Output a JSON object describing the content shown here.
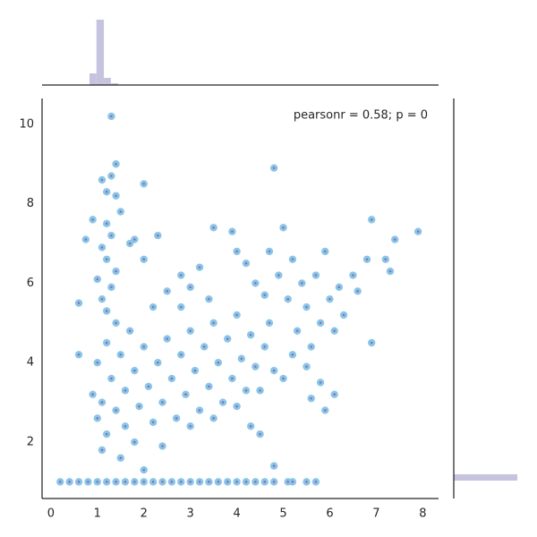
{
  "chart_data": {
    "type": "scatter",
    "annotation": "pearsonr = 0.58; p = 0",
    "color": "#89c6e6",
    "edge_color": "#8a6fc0",
    "hist_color": "#c5c3de",
    "xlim": [
      -0.19,
      8.34
    ],
    "ylim": [
      0.58,
      10.65
    ],
    "xticks": [
      0,
      1,
      2,
      3,
      4,
      5,
      6,
      7,
      8
    ],
    "yticks": [
      2,
      4,
      6,
      8,
      10
    ],
    "x": [
      0.2,
      0.4,
      0.6,
      0.8,
      1.0,
      1.2,
      1.4,
      1.6,
      1.8,
      2.0,
      2.2,
      2.4,
      2.6,
      2.8,
      3.0,
      3.2,
      3.4,
      3.6,
      3.8,
      4.0,
      4.2,
      4.4,
      4.6,
      4.8,
      5.1,
      5.2,
      5.5,
      5.7,
      1.3,
      1.4,
      1.3,
      1.1,
      1.2,
      1.4,
      1.5,
      1.2,
      1.3,
      1.1,
      1.2,
      1.4,
      1.0,
      1.3,
      1.1,
      1.2,
      0.9,
      0.75,
      0.6,
      0.6,
      1.7,
      1.8,
      2.0,
      2.0,
      2.3,
      0.9,
      1.0,
      1.0,
      1.1,
      1.1,
      1.2,
      1.2,
      1.3,
      1.4,
      1.4,
      1.5,
      1.5,
      1.6,
      1.6,
      1.7,
      1.8,
      1.8,
      1.9,
      2.0,
      2.0,
      2.1,
      2.2,
      2.2,
      2.3,
      2.4,
      2.4,
      2.5,
      2.6,
      2.7,
      2.8,
      2.8,
      2.9,
      3.0,
      3.0,
      3.1,
      3.2,
      3.3,
      3.4,
      3.5,
      3.5,
      3.6,
      3.7,
      3.8,
      3.9,
      4.0,
      4.0,
      4.1,
      4.2,
      4.3,
      4.4,
      4.5,
      4.6,
      4.7,
      4.8,
      4.8,
      4.5,
      4.3,
      2.5,
      2.8,
      3.0,
      3.2,
      3.4,
      3.5,
      3.9,
      4.0,
      4.2,
      4.4,
      4.6,
      4.7,
      4.8,
      4.9,
      5.0,
      5.1,
      5.2,
      5.3,
      5.4,
      5.5,
      5.6,
      5.7,
      5.8,
      5.9,
      6.0,
      6.1,
      6.2,
      6.3,
      6.5,
      6.6,
      6.8,
      6.9,
      6.9,
      7.2,
      7.3,
      7.4,
      7.9,
      5.5,
      5.8,
      6.1,
      5.9,
      5.6,
      5.2,
      5.0
    ],
    "y": [
      1,
      1,
      1,
      1,
      1,
      1,
      1,
      1,
      1,
      1,
      1,
      1,
      1,
      1,
      1,
      1,
      1,
      1,
      1,
      1,
      1,
      1,
      1,
      1,
      1,
      1,
      1,
      1,
      10.2,
      9.0,
      8.7,
      8.6,
      8.3,
      8.2,
      7.8,
      7.5,
      7.2,
      6.9,
      6.6,
      6.3,
      6.1,
      5.9,
      5.6,
      5.3,
      7.6,
      7.1,
      5.5,
      4.2,
      7.0,
      7.1,
      8.5,
      6.6,
      7.2,
      3.2,
      2.6,
      4.0,
      1.8,
      3.0,
      4.5,
      2.2,
      3.6,
      2.8,
      5.0,
      1.6,
      4.2,
      3.3,
      2.4,
      4.8,
      2.0,
      3.8,
      2.9,
      4.4,
      1.3,
      3.4,
      2.5,
      5.4,
      4.0,
      3.0,
      1.9,
      4.6,
      3.6,
      2.6,
      4.2,
      5.4,
      3.2,
      2.4,
      4.8,
      3.8,
      2.8,
      4.4,
      3.4,
      5.0,
      2.6,
      4.0,
      3.0,
      4.6,
      3.6,
      2.9,
      5.2,
      4.1,
      3.3,
      4.7,
      3.9,
      3.3,
      4.4,
      5.0,
      3.8,
      1.4,
      2.2,
      2.4,
      5.8,
      6.2,
      5.9,
      6.4,
      5.6,
      7.4,
      7.3,
      6.8,
      6.5,
      6.0,
      5.7,
      6.8,
      8.9,
      6.2,
      7.4,
      5.6,
      6.6,
      4.8,
      6.0,
      5.4,
      4.4,
      6.2,
      5.0,
      6.8,
      5.6,
      4.8,
      5.9,
      5.2,
      6.2,
      5.8,
      6.6,
      7.6,
      4.5,
      6.6,
      6.3,
      7.1,
      7.3,
      3.9,
      3.5,
      3.2,
      2.8,
      3.1,
      4.2,
      3.6
    ],
    "x_hist": {
      "bins": [
        0.83,
        0.98,
        1.14,
        1.29,
        1.45
      ],
      "counts": [
        13,
        73,
        8,
        2
      ],
      "lim": [
        0,
        75
      ]
    },
    "y_hist": {
      "bins": [
        1.03,
        1.19
      ],
      "counts": [
        71
      ],
      "lim": [
        0,
        75
      ]
    }
  }
}
